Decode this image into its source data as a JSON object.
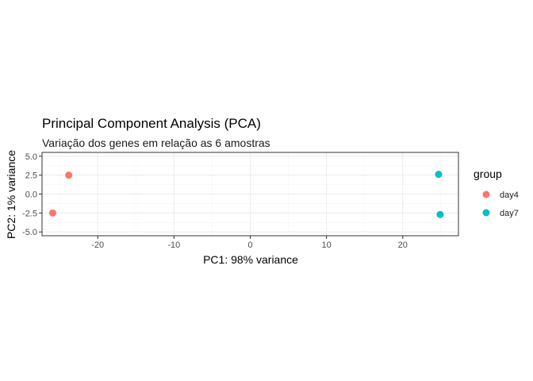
{
  "chart_data": {
    "type": "scatter",
    "title": "Principal Component Analysis (PCA)",
    "subtitle": "Variação dos genes em relação as 6 amostras",
    "xlabel": "PC1: 98% variance",
    "ylabel": "PC2: 1% variance",
    "xlim": [
      -27.3,
      27.3
    ],
    "ylim": [
      -5.5,
      5.5
    ],
    "xticks": [
      -20,
      -10,
      0,
      10,
      20
    ],
    "xtick_labels": [
      "-20",
      "-10",
      "0",
      "10",
      "20"
    ],
    "yticks": [
      -5,
      -2.5,
      0,
      2.5,
      5
    ],
    "ytick_labels": [
      "-5.0",
      "-2.5",
      "0.0",
      "2.5",
      "5.0"
    ],
    "grid": true,
    "legend": {
      "title": "group",
      "placement": "right"
    },
    "series": [
      {
        "name": "day4",
        "color": "#F8766D",
        "points": [
          {
            "x": -23.8,
            "y": 2.5
          },
          {
            "x": -25.9,
            "y": -2.5
          }
        ]
      },
      {
        "name": "day7",
        "color": "#00BFC4",
        "points": [
          {
            "x": 24.7,
            "y": 2.6
          },
          {
            "x": 24.9,
            "y": -2.7
          }
        ]
      }
    ]
  }
}
